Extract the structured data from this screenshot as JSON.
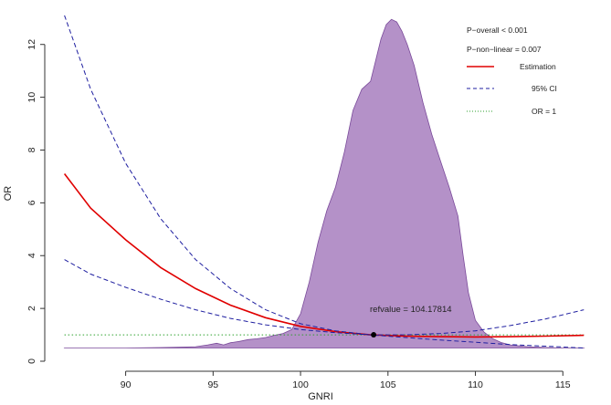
{
  "chart_data": {
    "type": "line",
    "xlabel": "GNRI",
    "ylabel": "OR",
    "xlim": [
      86,
      116.5
    ],
    "ylim": [
      0,
      13.2
    ],
    "x_ticks": [
      90,
      95,
      100,
      105,
      110,
      115
    ],
    "y_ticks": [
      0,
      2,
      4,
      6,
      8,
      10,
      12
    ],
    "grid": false,
    "legend_position": "top-right",
    "legend": {
      "p_overall": "P−overall < 0.001",
      "p_nonlinear": "P−non−linear = 0.007",
      "entries": [
        {
          "label": "Estimation",
          "color": "#e00000",
          "style": "solid"
        },
        {
          "label": "95% CI",
          "color": "#1f1fa0",
          "style": "dashed"
        },
        {
          "label": "OR = 1",
          "color": "#2ca02c",
          "style": "dotted"
        }
      ]
    },
    "annotation": {
      "text": "refvalue = 104.17814",
      "x": 104.18,
      "y": 1.0
    },
    "series": [
      {
        "name": "Estimation",
        "color": "#e00000",
        "style": "solid",
        "x": [
          86.5,
          88,
          90,
          92,
          94,
          96,
          98,
          100,
          102,
          104,
          106,
          108,
          110,
          112,
          114,
          116.2
        ],
        "y": [
          7.1,
          5.8,
          4.6,
          3.55,
          2.75,
          2.12,
          1.65,
          1.32,
          1.12,
          1.0,
          0.95,
          0.93,
          0.92,
          0.93,
          0.95,
          0.98
        ]
      },
      {
        "name": "95% CI",
        "color": "#1f1fa0",
        "style": "dashed",
        "x": [
          86.5,
          88,
          90,
          92,
          94,
          96,
          98,
          100,
          102,
          104,
          106,
          108,
          110,
          112,
          114,
          116.2
        ],
        "y": [
          13.1,
          10.3,
          7.5,
          5.4,
          3.85,
          2.75,
          1.95,
          1.42,
          1.15,
          1.0,
          1.0,
          1.05,
          1.15,
          1.35,
          1.6,
          1.95
        ]
      },
      {
        "name": "95% CI lower",
        "color": "#1f1fa0",
        "style": "dashed",
        "x": [
          86.5,
          88,
          90,
          92,
          94,
          96,
          98,
          100,
          102,
          104,
          106,
          108,
          110,
          112,
          114,
          116.2
        ],
        "y": [
          3.85,
          3.3,
          2.8,
          2.35,
          1.95,
          1.62,
          1.38,
          1.2,
          1.08,
          1.0,
          0.9,
          0.8,
          0.72,
          0.63,
          0.57,
          0.5
        ]
      },
      {
        "name": "OR = 1",
        "color": "#2ca02c",
        "style": "dotted",
        "x": [
          86.5,
          116.2
        ],
        "y": [
          1,
          1
        ]
      }
    ],
    "density": {
      "color": "#b491c8",
      "stroke": "#7a4a9a",
      "baseline": 0.5,
      "x": [
        86.5,
        90,
        92,
        93,
        94,
        94.7,
        95.2,
        95.6,
        96,
        96.5,
        97,
        97.5,
        98,
        98.5,
        99,
        99.5,
        100,
        100.5,
        101,
        101.5,
        102,
        102.5,
        103,
        103.5,
        104,
        104.3,
        104.6,
        104.9,
        105.2,
        105.5,
        105.8,
        106.1,
        106.5,
        107,
        107.5,
        108,
        108.5,
        109,
        109.3,
        109.6,
        110,
        110.5,
        111,
        111.5,
        112,
        113,
        114,
        115,
        116.2
      ],
      "y": [
        0.5,
        0.5,
        0.52,
        0.53,
        0.55,
        0.62,
        0.68,
        0.62,
        0.7,
        0.75,
        0.82,
        0.85,
        0.9,
        0.98,
        1.05,
        1.2,
        1.8,
        3.0,
        4.5,
        5.7,
        6.6,
        7.9,
        9.5,
        10.3,
        10.6,
        11.4,
        12.2,
        12.75,
        12.95,
        12.85,
        12.5,
        12.0,
        11.2,
        9.8,
        8.6,
        7.6,
        6.6,
        5.5,
        4.0,
        2.6,
        1.55,
        1.1,
        0.85,
        0.7,
        0.62,
        0.55,
        0.52,
        0.5,
        0.5
      ]
    }
  }
}
